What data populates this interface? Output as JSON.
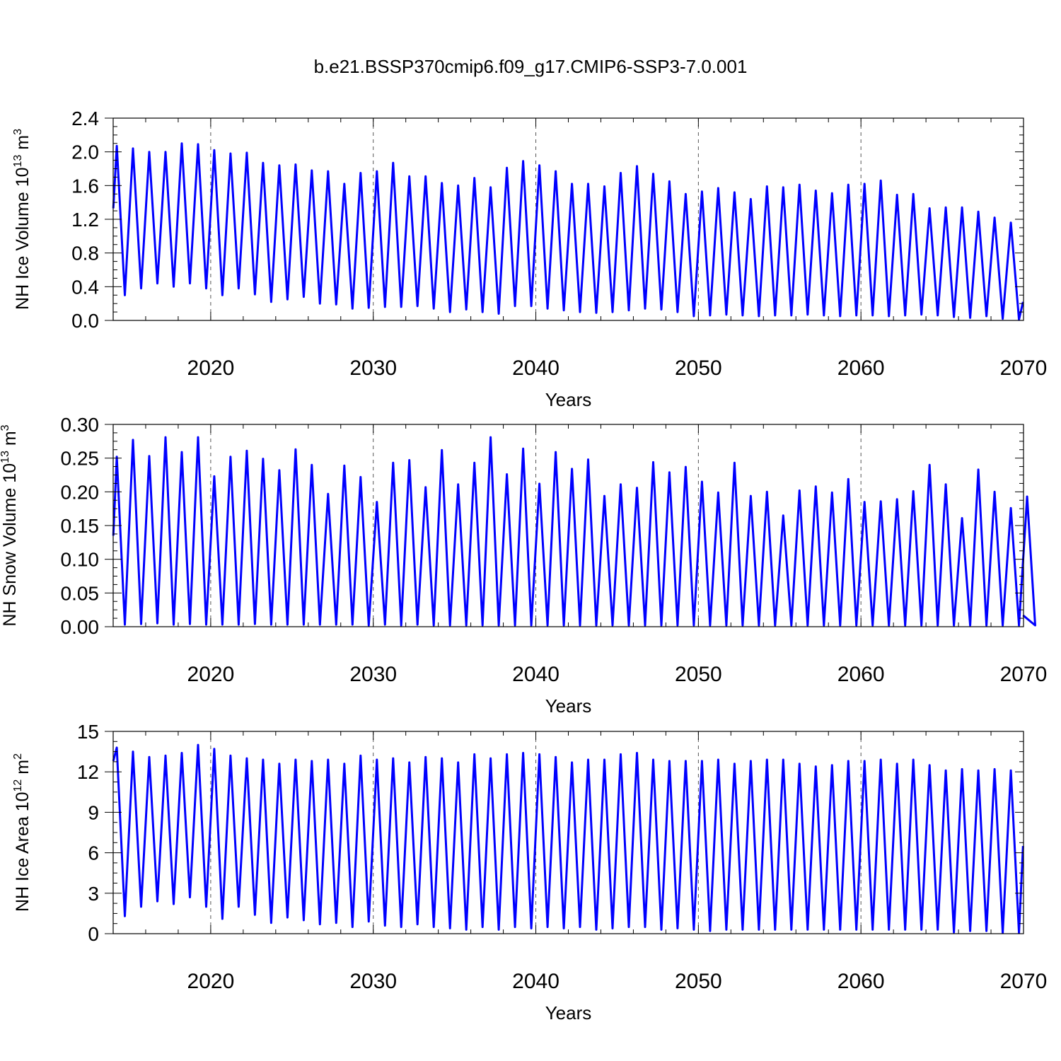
{
  "title": "b.e21.BSSP370cmip6.f09_g17.CMIP6-SSP3-7.0.001",
  "colors": {
    "series": "#0000ff",
    "axis": "#000000",
    "grid": "#555555"
  },
  "chart_data": [
    {
      "type": "line",
      "name": "ice-volume",
      "ylabel_main": "NH Ice Volume 10",
      "ylabel_exp": "13",
      "ylabel_unit": " m",
      "ylabel_unit_exp": "3",
      "xlabel": "Years",
      "xlim": [
        2014,
        2070
      ],
      "ylim": [
        0,
        2.4
      ],
      "xticks": [
        2020,
        2030,
        2040,
        2050,
        2060,
        2070
      ],
      "xtick_labels": [
        "2020",
        "2030",
        "2040",
        "2050",
        "2060",
        "2070"
      ],
      "yticks": [
        0.0,
        0.4,
        0.8,
        1.2,
        1.6,
        2.0,
        2.4
      ],
      "ytick_labels": [
        "0.0",
        "0.4",
        "0.8",
        "1.2",
        "1.6",
        "2.0",
        "2.4"
      ],
      "start_value": 1.33,
      "end_value": 0.22,
      "annual_max": [
        2.07,
        2.04,
        2.0,
        2.0,
        2.1,
        2.09,
        2.02,
        1.98,
        1.99,
        1.87,
        1.84,
        1.85,
        1.78,
        1.77,
        1.62,
        1.75,
        1.77,
        1.87,
        1.71,
        1.71,
        1.63,
        1.6,
        1.69,
        1.58,
        1.81,
        1.89,
        1.84,
        1.77,
        1.62,
        1.62,
        1.59,
        1.75,
        1.83,
        1.74,
        1.65,
        1.5,
        1.53,
        1.57,
        1.52,
        1.44,
        1.59,
        1.58,
        1.61,
        1.54,
        1.51,
        1.61,
        1.62,
        1.66,
        1.49,
        1.5,
        1.33,
        1.34,
        1.34,
        1.29,
        1.22,
        1.16
      ],
      "annual_min": [
        0.3,
        0.38,
        0.44,
        0.4,
        0.44,
        0.38,
        0.3,
        0.38,
        0.31,
        0.22,
        0.25,
        0.28,
        0.2,
        0.19,
        0.14,
        0.15,
        0.16,
        0.16,
        0.17,
        0.14,
        0.1,
        0.13,
        0.1,
        0.08,
        0.17,
        0.17,
        0.14,
        0.12,
        0.1,
        0.09,
        0.1,
        0.12,
        0.14,
        0.13,
        0.1,
        0.05,
        0.06,
        0.07,
        0.06,
        0.05,
        0.06,
        0.06,
        0.07,
        0.06,
        0.05,
        0.06,
        0.06,
        0.05,
        0.06,
        0.07,
        0.06,
        0.04,
        0.03,
        0.05,
        0.02,
        0.01
      ]
    },
    {
      "type": "line",
      "name": "snow-volume",
      "ylabel_main": "NH Snow Volume 10",
      "ylabel_exp": "13",
      "ylabel_unit": " m",
      "ylabel_unit_exp": "3",
      "xlabel": "Years",
      "xlim": [
        2014,
        2070
      ],
      "ylim": [
        0,
        0.3
      ],
      "xticks": [
        2020,
        2030,
        2040,
        2050,
        2060,
        2070
      ],
      "xtick_labels": [
        "2020",
        "2030",
        "2040",
        "2050",
        "2060",
        "2070"
      ],
      "yticks": [
        0.0,
        0.05,
        0.1,
        0.15,
        0.2,
        0.25,
        0.3
      ],
      "ytick_labels": [
        "0.00",
        "0.05",
        "0.10",
        "0.15",
        "0.20",
        "0.25",
        "0.30"
      ],
      "start_value": 0.135,
      "end_value": 0.017,
      "annual_max": [
        0.252,
        0.277,
        0.253,
        0.281,
        0.259,
        0.281,
        0.223,
        0.252,
        0.261,
        0.249,
        0.232,
        0.263,
        0.24,
        0.197,
        0.239,
        0.222,
        0.185,
        0.243,
        0.247,
        0.207,
        0.262,
        0.211,
        0.243,
        0.281,
        0.226,
        0.264,
        0.212,
        0.259,
        0.234,
        0.248,
        0.194,
        0.211,
        0.206,
        0.244,
        0.229,
        0.237,
        0.215,
        0.199,
        0.243,
        0.194,
        0.2,
        0.165,
        0.202,
        0.208,
        0.199,
        0.219,
        0.185,
        0.186,
        0.189,
        0.201,
        0.24,
        0.211,
        0.161,
        0.233,
        0.2,
        0.176,
        0.193
      ],
      "annual_min": [
        0.003,
        0.004,
        0.005,
        0.003,
        0.004,
        0.003,
        0.003,
        0.003,
        0.004,
        0.003,
        0.003,
        0.003,
        0.003,
        0.003,
        0.003,
        0.002,
        0.003,
        0.002,
        0.003,
        0.002,
        0.002,
        0.002,
        0.002,
        0.002,
        0.002,
        0.002,
        0.002,
        0.002,
        0.002,
        0.002,
        0.002,
        0.002,
        0.002,
        0.002,
        0.002,
        0.002,
        0.002,
        0.002,
        0.002,
        0.002,
        0.002,
        0.002,
        0.002,
        0.002,
        0.002,
        0.002,
        0.002,
        0.002,
        0.002,
        0.002,
        0.002,
        0.002,
        0.002,
        0.002,
        0.002,
        0.002,
        0.002
      ]
    },
    {
      "type": "line",
      "name": "ice-area",
      "ylabel_main": "NH Ice Area 10",
      "ylabel_exp": "12",
      "ylabel_unit": " m",
      "ylabel_unit_exp": "2",
      "xlabel": "Years",
      "xlim": [
        2014,
        2070
      ],
      "ylim": [
        0,
        15
      ],
      "xticks": [
        2020,
        2030,
        2040,
        2050,
        2060,
        2070
      ],
      "xtick_labels": [
        "2020",
        "2030",
        "2040",
        "2050",
        "2060",
        "2070"
      ],
      "yticks": [
        0,
        3,
        6,
        9,
        12,
        15
      ],
      "ytick_labels": [
        "0",
        "3",
        "6",
        "9",
        "12",
        "15"
      ],
      "start_value": 12.8,
      "end_value": 6.5,
      "annual_max": [
        13.8,
        13.5,
        13.1,
        13.2,
        13.4,
        14.0,
        13.7,
        13.2,
        13.0,
        12.9,
        12.6,
        12.9,
        12.8,
        12.9,
        12.6,
        13.2,
        12.9,
        13.0,
        12.7,
        13.1,
        13.0,
        12.7,
        13.3,
        13.0,
        13.3,
        13.4,
        13.3,
        13.1,
        12.7,
        12.9,
        12.9,
        13.3,
        13.4,
        12.9,
        12.8,
        12.8,
        12.8,
        12.9,
        12.6,
        12.8,
        12.9,
        12.9,
        12.6,
        12.4,
        12.5,
        12.8,
        12.8,
        12.9,
        12.6,
        12.9,
        12.5,
        12.1,
        12.2,
        12.1,
        12.2,
        12.1
      ],
      "annual_min": [
        1.3,
        2.0,
        2.4,
        2.2,
        2.7,
        2.0,
        1.1,
        2.0,
        1.4,
        0.8,
        1.2,
        1.0,
        0.7,
        0.8,
        0.5,
        0.9,
        0.6,
        0.5,
        0.7,
        0.5,
        0.4,
        0.3,
        0.5,
        0.3,
        0.5,
        0.4,
        0.5,
        0.4,
        0.5,
        0.3,
        0.4,
        0.5,
        0.5,
        0.3,
        0.4,
        0.3,
        0.2,
        0.3,
        0.3,
        0.3,
        0.3,
        0.3,
        0.3,
        0.3,
        0.3,
        0.3,
        0.3,
        0.3,
        0.3,
        0.3,
        0.3,
        0.1,
        0.2,
        0.2,
        0.05,
        0.05
      ]
    }
  ]
}
